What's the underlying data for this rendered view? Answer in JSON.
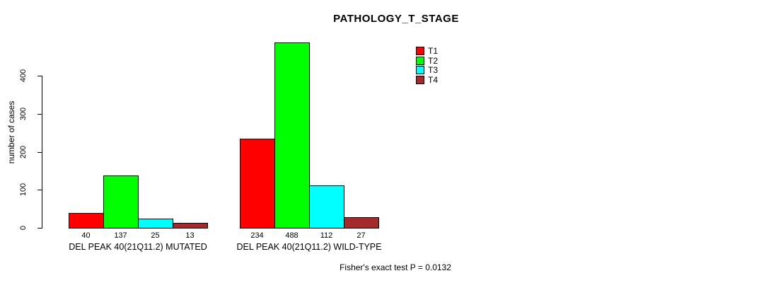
{
  "title": "PATHOLOGY_T_STAGE",
  "ylabel": "number of cases",
  "footer": "Fisher's exact test P = 0.0132",
  "chart_data": {
    "type": "bar",
    "title": "PATHOLOGY_T_STAGE",
    "xlabel": "",
    "ylabel": "number of cases",
    "categories": [
      "DEL PEAK 40(21Q11.2) MUTATED",
      "DEL PEAK 40(21Q11.2) WILD-TYPE"
    ],
    "series": [
      {
        "name": "T1",
        "color": "#FF0000",
        "values": [
          40,
          234
        ]
      },
      {
        "name": "T2",
        "color": "#00FF00",
        "values": [
          137,
          488
        ]
      },
      {
        "name": "T3",
        "color": "#00FFFF",
        "values": [
          25,
          112
        ]
      },
      {
        "name": "T4",
        "color": "#A52A2A",
        "values": [
          13,
          27
        ]
      }
    ],
    "yticks": [
      0,
      100,
      200,
      300,
      400
    ],
    "ylim": [
      0,
      400
    ],
    "grid": false,
    "legend_position": "top-right",
    "value_labels_shown": true,
    "annotation": "Fisher's exact test P = 0.0132",
    "axis_color": "#000000",
    "bar_border_color": "#000000"
  }
}
